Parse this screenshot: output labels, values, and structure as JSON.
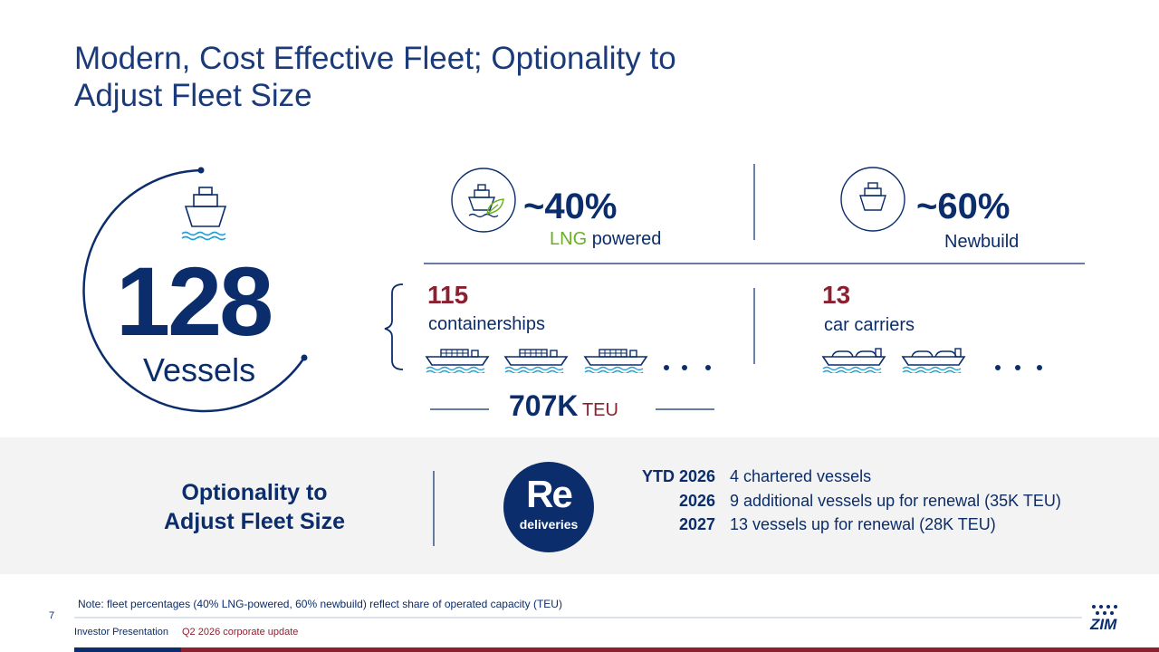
{
  "header": {
    "title_lines": [
      "Modern, Cost Effective Fleet; Optionality to",
      "Adjust Fleet Size"
    ]
  },
  "fleet": {
    "total": "128",
    "total_label": "Vessels"
  },
  "lng": {
    "value": "~40%",
    "highlight": "LNG",
    "label": "powered"
  },
  "newbuild": {
    "value": "~60%",
    "label": "Newbuild"
  },
  "containerships": {
    "count": "115",
    "label": "containerships"
  },
  "car_carriers": {
    "count": "13",
    "label": "car carriers"
  },
  "capacity": {
    "value": "707K",
    "unit": "TEU"
  },
  "optionality": {
    "title_lines": [
      "Optionality to",
      "Adjust Fleet Size"
    ],
    "badge": {
      "main": "Re",
      "sub": "deliveries"
    },
    "renewals": [
      {
        "period": "YTD 2026",
        "text": "4 chartered vessels"
      },
      {
        "period": "2026",
        "text": "9 additional vessels up for renewal (35K TEU)"
      },
      {
        "period": "2027",
        "text": "13 vessels up for renewal  (28K TEU)"
      }
    ]
  },
  "footer": {
    "note": "Note: fleet percentages (40% LNG-powered, 60% newbuild) reflect share of operated capacity (TEU)",
    "page": "7",
    "left": "Investor Presentation",
    "right": "Q2 2026 corporate update",
    "logo": "ZIM"
  }
}
